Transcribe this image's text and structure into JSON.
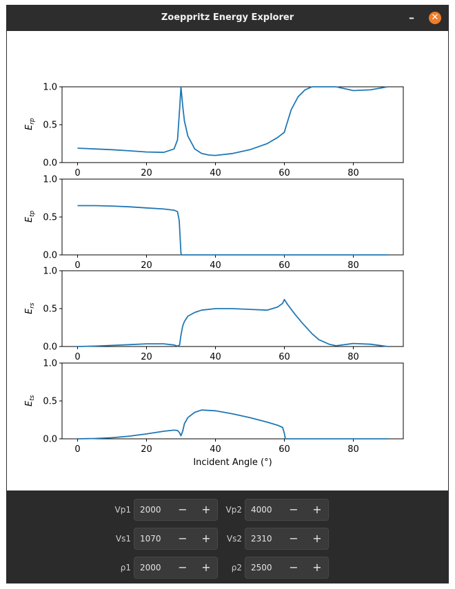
{
  "window": {
    "title": "Zoeppritz Energy Explorer",
    "minimize_glyph": "–",
    "close_glyph": "✕",
    "close_color": "#f07d2a"
  },
  "plot": {
    "xlabel": "Incident Angle (°)",
    "line_color": "#1f77b4",
    "x_ticks": [
      0,
      20,
      40,
      60,
      80
    ],
    "y_ticks": [
      "0.0",
      "0.5",
      "1.0"
    ],
    "xlim": [
      -4.5,
      94.5
    ],
    "ylim": [
      0,
      1
    ]
  },
  "chart_data": [
    {
      "type": "line",
      "ylabel": "E_rp",
      "x": [
        0,
        5,
        10,
        15,
        20,
        25,
        28,
        29,
        29.6,
        30,
        30.5,
        31,
        32,
        34,
        36,
        38,
        40,
        45,
        50,
        55,
        58,
        60,
        60.3,
        62,
        64,
        66,
        68,
        70,
        75,
        80,
        85,
        90
      ],
      "y": [
        0.19,
        0.18,
        0.17,
        0.155,
        0.14,
        0.135,
        0.18,
        0.3,
        0.7,
        1.0,
        0.75,
        0.55,
        0.35,
        0.18,
        0.12,
        0.1,
        0.095,
        0.12,
        0.17,
        0.25,
        0.33,
        0.4,
        0.45,
        0.7,
        0.87,
        0.96,
        1.0,
        1.0,
        1.0,
        0.95,
        0.96,
        1.0
      ]
    },
    {
      "type": "line",
      "ylabel": "E_tp",
      "x": [
        0,
        5,
        10,
        15,
        20,
        25,
        28,
        29,
        29.5,
        30,
        30.2,
        40,
        50,
        60,
        70,
        80,
        90
      ],
      "y": [
        0.65,
        0.65,
        0.645,
        0.635,
        0.62,
        0.605,
        0.59,
        0.57,
        0.45,
        0.02,
        0.0,
        0.0,
        0.0,
        0.0,
        0.0,
        0.0,
        0.0
      ]
    },
    {
      "type": "line",
      "ylabel": "E_rs",
      "x": [
        0,
        5,
        10,
        15,
        20,
        25,
        28,
        29,
        29.6,
        30,
        30.5,
        31,
        32,
        34,
        36,
        40,
        45,
        50,
        55,
        58,
        59.5,
        60,
        61,
        63,
        65,
        68,
        70,
        73,
        75,
        80,
        85,
        90
      ],
      "y": [
        0.0,
        0.005,
        0.015,
        0.025,
        0.035,
        0.035,
        0.02,
        0.005,
        0.02,
        0.15,
        0.27,
        0.33,
        0.4,
        0.45,
        0.48,
        0.5,
        0.5,
        0.49,
        0.48,
        0.52,
        0.57,
        0.62,
        0.55,
        0.43,
        0.32,
        0.17,
        0.09,
        0.03,
        0.01,
        0.04,
        0.03,
        0.0
      ]
    },
    {
      "type": "line",
      "ylabel": "E_ts",
      "x": [
        0,
        5,
        10,
        15,
        20,
        25,
        28,
        29,
        29.6,
        30,
        30.5,
        31,
        32,
        34,
        36,
        40,
        45,
        50,
        55,
        58,
        59.5,
        60,
        60.3,
        70,
        80,
        90
      ],
      "y": [
        0.0,
        0.005,
        0.015,
        0.035,
        0.065,
        0.1,
        0.115,
        0.11,
        0.08,
        0.04,
        0.1,
        0.2,
        0.28,
        0.35,
        0.38,
        0.37,
        0.33,
        0.28,
        0.22,
        0.18,
        0.15,
        0.07,
        0.0,
        0.0,
        0.0,
        0.0
      ]
    }
  ],
  "controls": {
    "vp1": {
      "label": "Vp1",
      "value": "2000"
    },
    "vp2": {
      "label": "Vp2",
      "value": "4000"
    },
    "vs1": {
      "label": "Vs1",
      "value": "1070"
    },
    "vs2": {
      "label": "Vs2",
      "value": "2310"
    },
    "rho1": {
      "label": "ρ1",
      "value": "2000"
    },
    "rho2": {
      "label": "ρ2",
      "value": "2500"
    },
    "minus_glyph": "−",
    "plus_glyph": "+"
  }
}
